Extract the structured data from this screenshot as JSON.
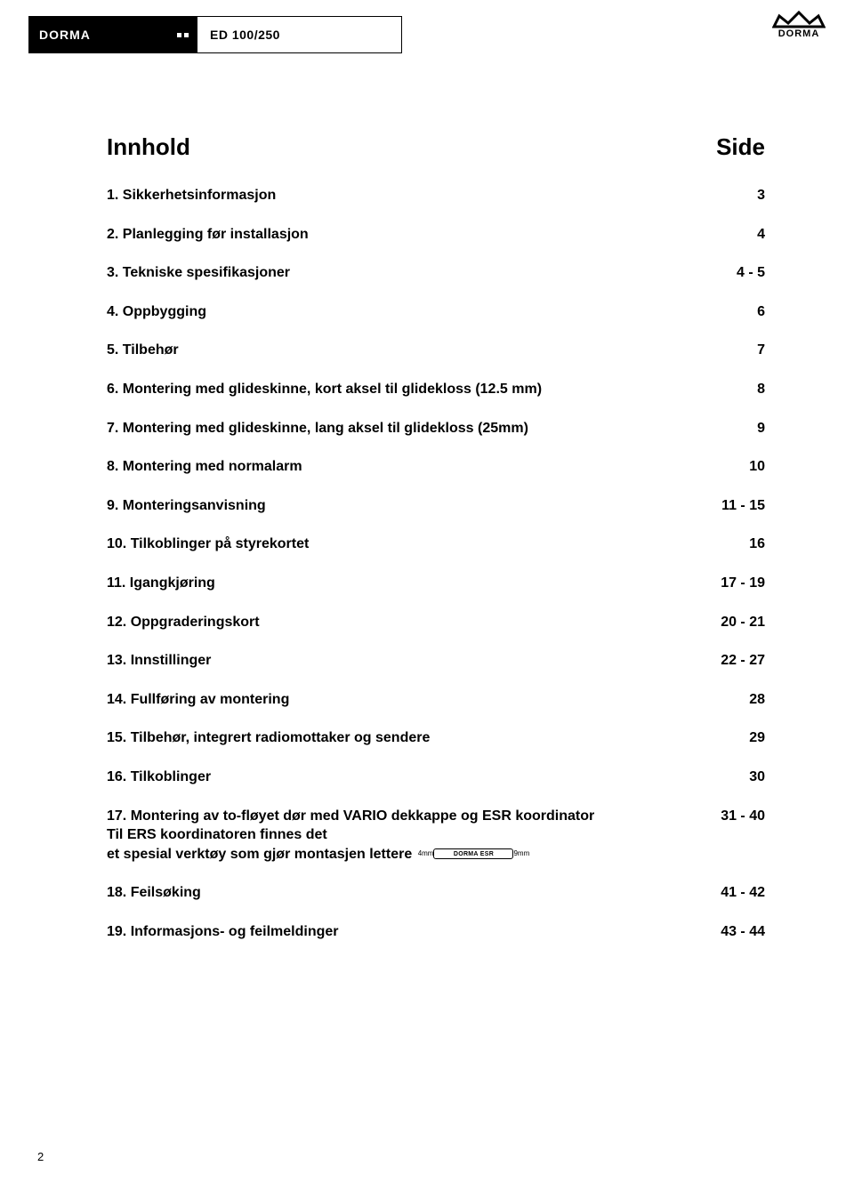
{
  "header": {
    "brand_left": "DORMA",
    "model": "ED 100/250",
    "brand_right": "DORMA"
  },
  "toc": {
    "heading_left": "Innhold",
    "heading_right": "Side",
    "rows": [
      {
        "num": "1.",
        "title": "Sikkerhetsinformasjon",
        "page": "3"
      },
      {
        "num": "2.",
        "title": "Planlegging før installasjon",
        "page": "4"
      },
      {
        "num": "3.",
        "title": "Tekniske spesifikasjoner",
        "page": "4 - 5"
      },
      {
        "num": "4.",
        "title": "Oppbygging",
        "page": "6"
      },
      {
        "num": "5.",
        "title": "Tilbehør",
        "page": "7"
      },
      {
        "num": "6.",
        "title": "Montering med glideskinne, kort aksel til glidekloss (12.5 mm)",
        "page": "8"
      },
      {
        "num": "7.",
        "title": "Montering med glideskinne, lang aksel til glidekloss (25mm)",
        "page": "9"
      },
      {
        "num": "8.",
        "title": "Montering med normalarm",
        "page": "10"
      },
      {
        "num": "9.",
        "title": "Monteringsanvisning",
        "page": "11 - 15"
      },
      {
        "num": "10.",
        "title": "Tilkoblinger på styrekortet",
        "page": "16"
      },
      {
        "num": "11.",
        "title": "Igangkjøring",
        "page": "17 - 19"
      },
      {
        "num": "12.",
        "title": "Oppgraderingskort",
        "page": "20 - 21"
      },
      {
        "num": "13.",
        "title": "Innstillinger",
        "page": "22 - 27"
      },
      {
        "num": "14.",
        "title": "Fullføring av montering",
        "page": "28"
      },
      {
        "num": "15.",
        "title": "Tilbehør, integrert radiomottaker og sendere",
        "page": "29"
      },
      {
        "num": "16.",
        "title": "Tilkoblinger",
        "page": "30"
      },
      {
        "num": "17.",
        "title": "Montering av to-fløyet dør med VARIO dekkappe og ESR koordinator",
        "sub1": "Til ERS koordinatoren finnes det",
        "sub2": "et spesial verktøy som gjør montasjen lettere",
        "ruler_left": "4mm",
        "ruler_text": "DORMA ESR",
        "ruler_right": "9mm",
        "page": "31 - 40"
      },
      {
        "num": "18.",
        "title": "Feilsøking",
        "page": "41 - 42"
      },
      {
        "num": "19.",
        "title": "Informasjons- og feilmeldinger",
        "page": "43 - 44"
      }
    ]
  },
  "footer": {
    "page_number": "2"
  },
  "colors": {
    "text": "#000000",
    "background": "#ffffff",
    "header_block": "#000000"
  },
  "typography": {
    "heading_size_pt": 20,
    "row_size_pt": 12,
    "font_family": "Arial"
  }
}
